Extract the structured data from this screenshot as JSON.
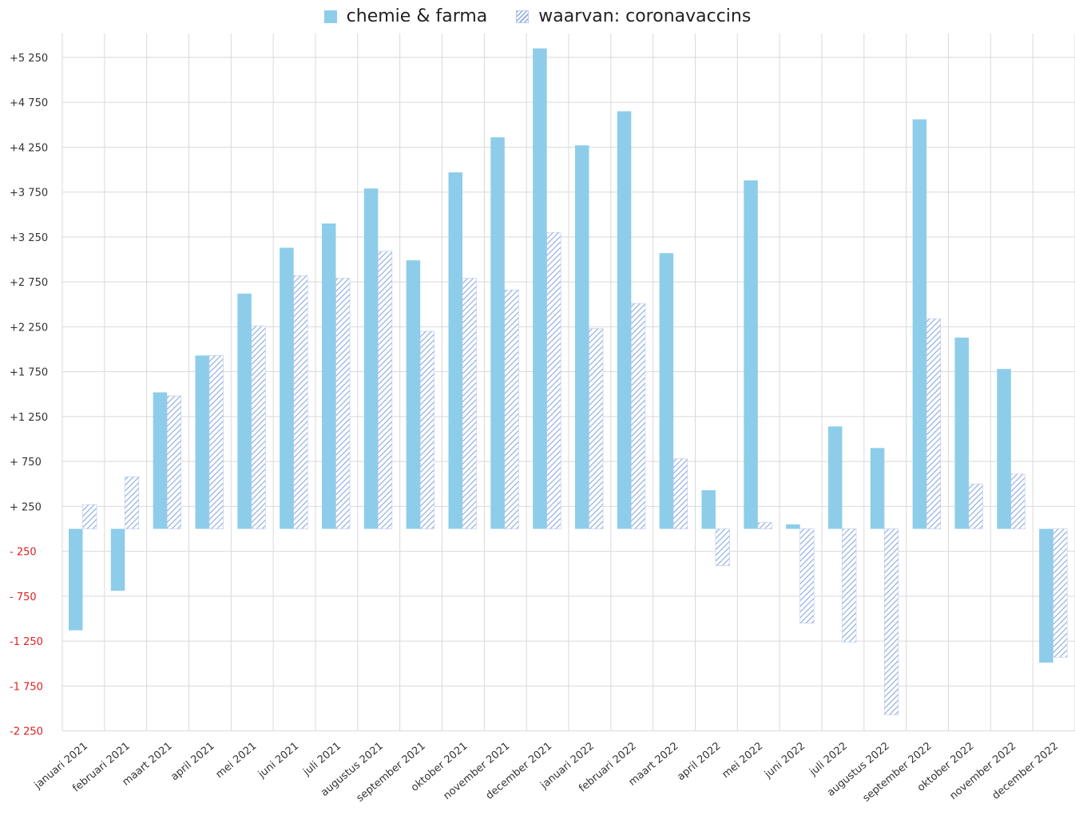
{
  "chart_data": {
    "type": "bar",
    "title": "",
    "xlabel": "",
    "ylabel": "",
    "ylim": [
      -2250,
      5500
    ],
    "grid": true,
    "legend_position": "top-center",
    "categories": [
      "januari 2021",
      "februari 2021",
      "maart 2021",
      "april 2021",
      "mei 2021",
      "juni 2021",
      "juli 2021",
      "augustus 2021",
      "september 2021",
      "oktober 2021",
      "november 2021",
      "december 2021",
      "januari 2022",
      "februari 2022",
      "maart 2022",
      "april 2022",
      "mei 2022",
      "juni 2022",
      "juli 2022",
      "augustus 2022",
      "september 2022",
      "oktober 2022",
      "november 2022",
      "december 2022"
    ],
    "y_ticks": [
      {
        "value": 5250,
        "label": "+5 250"
      },
      {
        "value": 4750,
        "label": "+4 750"
      },
      {
        "value": 4250,
        "label": "+4 250"
      },
      {
        "value": 3750,
        "label": "+3 750"
      },
      {
        "value": 3250,
        "label": "+3 250"
      },
      {
        "value": 2750,
        "label": "+2 750"
      },
      {
        "value": 2250,
        "label": "+2 250"
      },
      {
        "value": 1750,
        "label": "+1 750"
      },
      {
        "value": 1250,
        "label": "+1 250"
      },
      {
        "value": 750,
        "label": "+ 750"
      },
      {
        "value": 250,
        "label": "+ 250"
      },
      {
        "value": -250,
        "label": "- 250"
      },
      {
        "value": -750,
        "label": "- 750"
      },
      {
        "value": -1250,
        "label": "-1 250"
      },
      {
        "value": -1750,
        "label": "-1 750"
      },
      {
        "value": -2250,
        "label": "-2 250"
      }
    ],
    "series": [
      {
        "name": "chemie & farma",
        "style": "solid",
        "color": "#8dcdea",
        "values": [
          -1130,
          -690,
          1520,
          1930,
          2620,
          3130,
          3400,
          3790,
          2990,
          3970,
          4360,
          5350,
          4270,
          4650,
          3070,
          430,
          3880,
          50,
          1140,
          900,
          4560,
          2130,
          1780,
          -1490
        ]
      },
      {
        "name": "waarvan: coronavaccins",
        "style": "hatched",
        "color": "#8aa8e0",
        "values": [
          270,
          580,
          1480,
          1930,
          2260,
          2820,
          2790,
          3090,
          2200,
          2790,
          2660,
          3300,
          2230,
          2510,
          780,
          -410,
          70,
          -1050,
          -1260,
          -2070,
          2340,
          500,
          610,
          -1430
        ]
      }
    ],
    "colors": {
      "positive_tick": "#333333",
      "negative_tick": "#e02020",
      "grid": "#d9d9d9"
    }
  }
}
